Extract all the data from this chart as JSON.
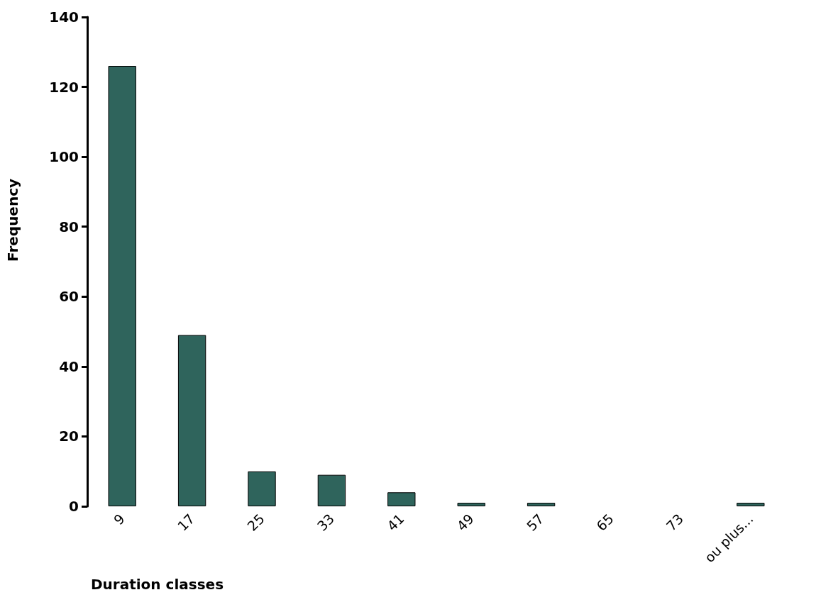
{
  "chart_data": {
    "type": "bar",
    "xlabel": "Duration classes",
    "ylabel": "Frequency",
    "categories": [
      "9",
      "17",
      "25",
      "33",
      "41",
      "49",
      "57",
      "65",
      "73",
      "ou plus..."
    ],
    "values": [
      126,
      49,
      10,
      9,
      4,
      1,
      1,
      0,
      0,
      1
    ],
    "color": "#2f645c",
    "ylim": [
      0,
      140
    ],
    "yticks": [
      0,
      20,
      40,
      60,
      80,
      100,
      120,
      140
    ],
    "grid": false
  }
}
